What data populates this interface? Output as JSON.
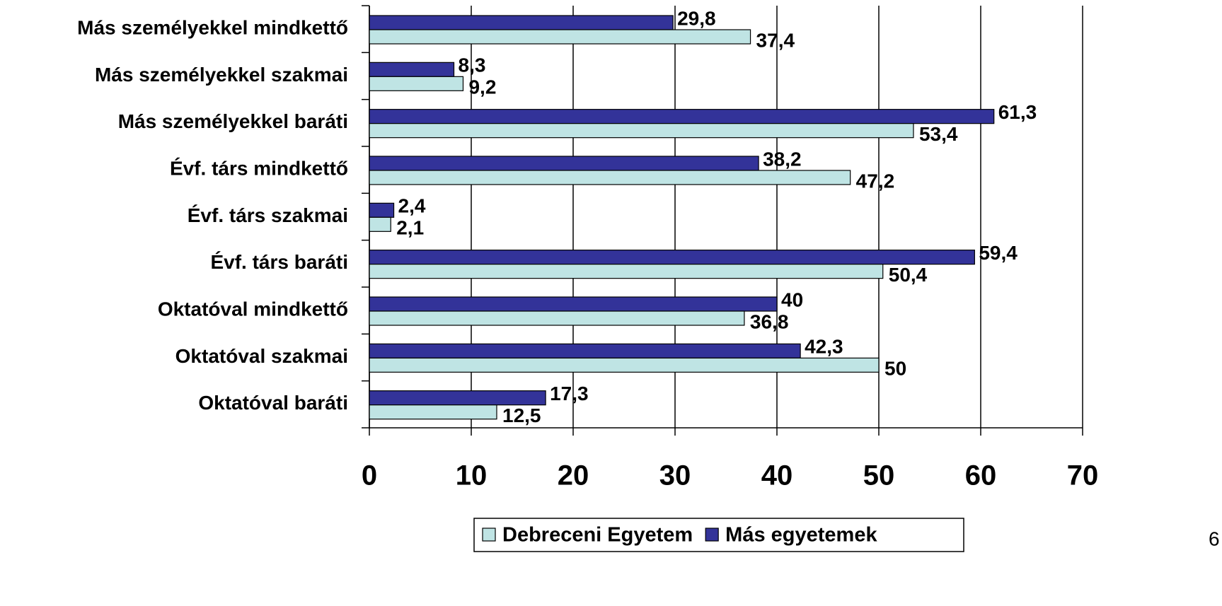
{
  "chart_data": {
    "type": "barh",
    "categories": [
      "Más személyekkel mindkettő",
      "Más személyekkel szakmai",
      "Más személyekkel baráti",
      "Évf. társ mindkettő",
      "Évf. társ szakmai",
      "Évf. társ baráti",
      "Oktatóval mindkettő",
      "Oktatóval szakmai",
      "Oktatóval baráti"
    ],
    "series": [
      {
        "name": "Debreceni Egyetem",
        "color": "#bfe4e4",
        "values": [
          37.4,
          9.2,
          53.4,
          47.2,
          2.1,
          50.4,
          36.8,
          50,
          12.5
        ],
        "value_labels": [
          "37,4",
          "9,2",
          "53,4",
          "47,2",
          "2,1",
          "50,4",
          "36,8",
          "50",
          "12,5"
        ]
      },
      {
        "name": "Más egyetemek",
        "color": "#333399",
        "values": [
          29.8,
          8.3,
          61.3,
          38.2,
          2.4,
          59.4,
          40,
          42.3,
          17.3
        ],
        "value_labels": [
          "29,8",
          "8,3",
          "61,3",
          "38,2",
          "2,4",
          "59,4",
          "40",
          "42,3",
          "17,3"
        ]
      }
    ],
    "xlim": [
      0,
      70
    ],
    "xticks": [
      0,
      10,
      20,
      30,
      40,
      50,
      60,
      70
    ],
    "grid": true,
    "legend": "bottom"
  },
  "page_number": "6"
}
